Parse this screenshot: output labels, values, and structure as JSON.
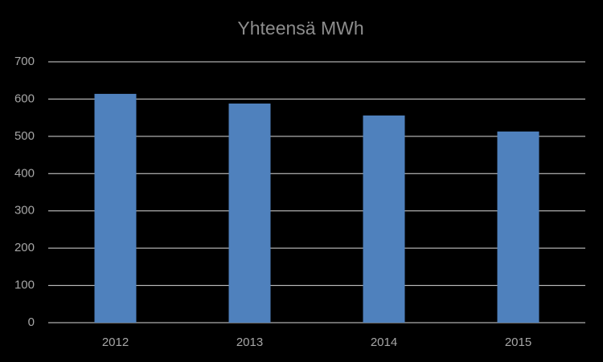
{
  "chart_data": {
    "type": "bar",
    "title": "Yhteensä MWh",
    "categories": [
      "2012",
      "2013",
      "2014",
      "2015"
    ],
    "values": [
      614,
      588,
      556,
      513
    ],
    "color": "#4f81bd",
    "ylim": [
      0,
      700
    ],
    "yticks": [
      0,
      100,
      200,
      300,
      400,
      500,
      600,
      700
    ],
    "grid": true
  }
}
